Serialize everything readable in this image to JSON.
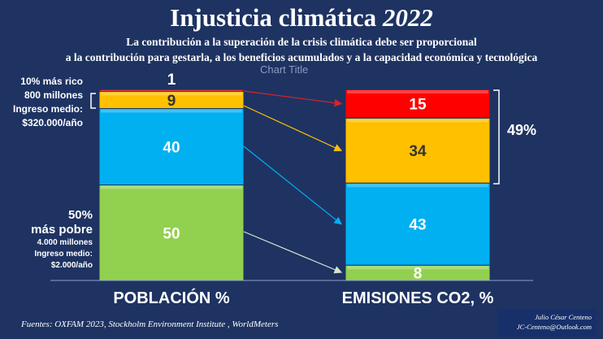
{
  "header": {
    "title_main": "Injusticia climática",
    "title_year": "2022",
    "subtitle_1": "La contribución a la superación de la crisis climática debe ser proporcional",
    "subtitle_2": "a la contribución para gestarla, a los beneficios acumulados y a la capacidad económica y tecnológica"
  },
  "chart_data": {
    "type": "bar",
    "stacked": true,
    "title": "Chart Title",
    "categories": [
      "POBLACIÓN %",
      "EMISIONES CO2, %"
    ],
    "series": [
      {
        "values": [
          50,
          8
        ],
        "color": "#92d050"
      },
      {
        "values": [
          40,
          43
        ],
        "color": "#00b0f0"
      },
      {
        "values": [
          9,
          34
        ],
        "color": "#ffc000"
      },
      {
        "values": [
          1,
          15
        ],
        "color": "#ff0000"
      }
    ],
    "ylim": [
      0,
      100
    ],
    "bracket_label": "49%",
    "annotations": {
      "rich": [
        "10% más rico",
        "800 millones",
        "Ingreso medio:",
        "$320.000/año"
      ],
      "poor": [
        "50%",
        "más pobre",
        "4.000 millones",
        "Ingreso medio:",
        "$2.000/año"
      ]
    }
  },
  "footer": {
    "sources": "Fuentes: OXFAM 2023, Stockholm Environment Institute , WorldMeters",
    "author": "Julio César Centeno",
    "email": "JC-Centeno@Outlook.com"
  }
}
